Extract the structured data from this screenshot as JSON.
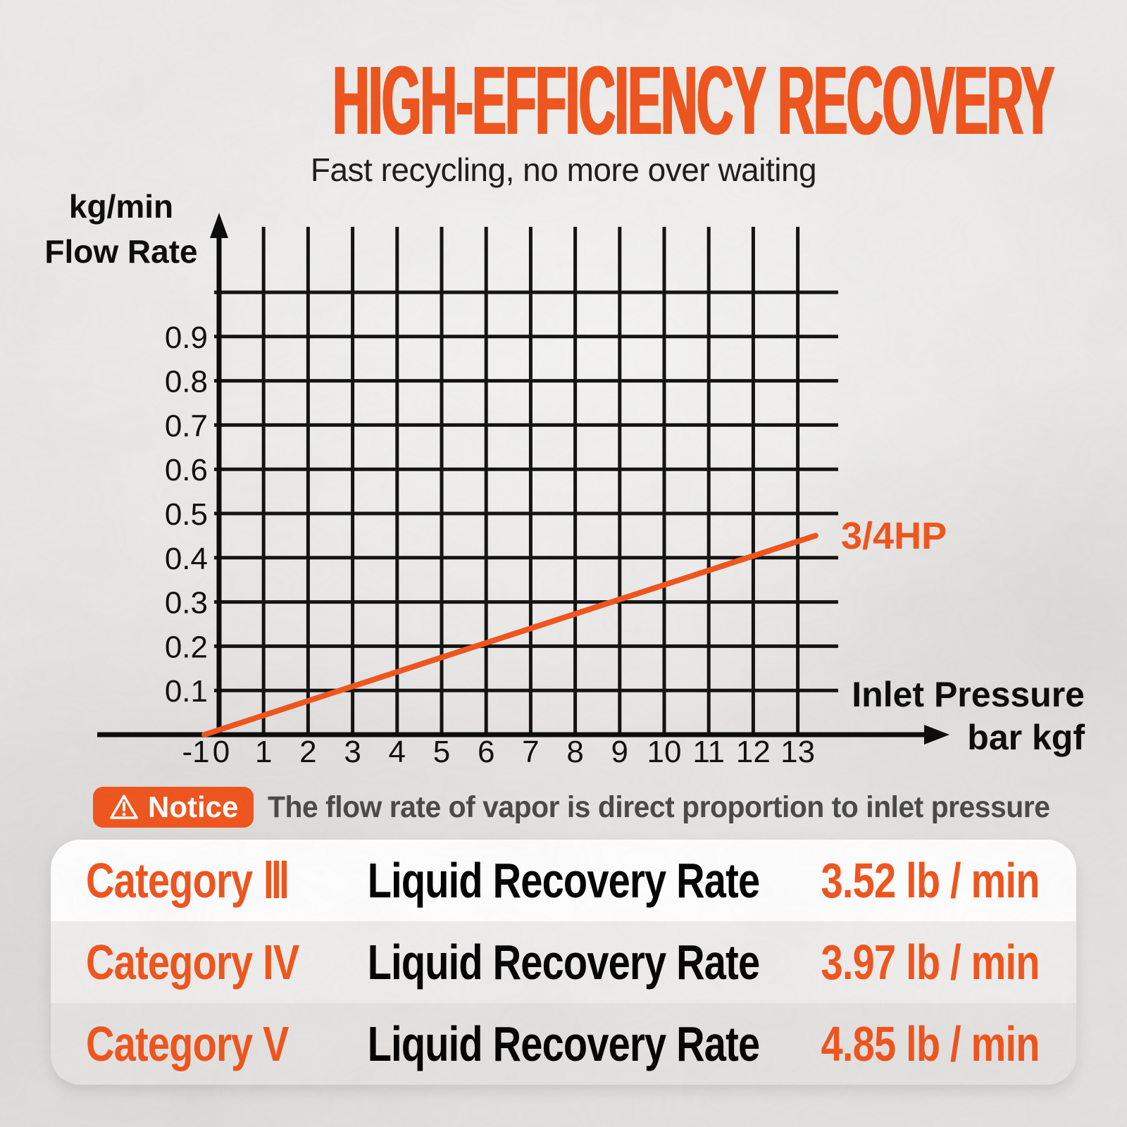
{
  "page": {
    "title": "HIGH-EFFICIENCY RECOVERY",
    "subtitle": "Fast recycling, no more over waiting"
  },
  "colors": {
    "accent": "#F1571F",
    "grid": "#141414",
    "axis": "#0D0D0D",
    "tick_text": "#111111",
    "notice_text": "#4A4A4A",
    "metric_text": "#050505",
    "background": "#E9E8E6"
  },
  "chart": {
    "y_axis_unit": "kg/min",
    "y_axis_name": "Flow Rate",
    "x_axis_name": "Inlet Pressure",
    "x_axis_unit": "bar kgf"
  },
  "chart_data": {
    "type": "line",
    "title": "",
    "xlabel": "Inlet Pressure (bar kgf)",
    "ylabel": "Flow Rate (kg/min)",
    "x_ticks": [
      -1,
      0,
      1,
      2,
      3,
      4,
      5,
      6,
      7,
      8,
      9,
      10,
      11,
      12,
      13
    ],
    "y_ticks": [
      0.1,
      0.2,
      0.3,
      0.4,
      0.5,
      0.6,
      0.7,
      0.8,
      0.9
    ],
    "xlim": [
      -1,
      14
    ],
    "ylim": [
      0,
      1.1
    ],
    "grid": true,
    "legend_position": "inline-right",
    "series": [
      {
        "name": "3/4HP",
        "color": "#F1571F",
        "points": [
          [
            -0.33,
            0.0
          ],
          [
            13.4,
            0.45
          ]
        ]
      }
    ]
  },
  "notice": {
    "badge": "Notice",
    "text": "The flow rate of vapor is direct proportion to inlet pressure"
  },
  "table": {
    "rows": [
      {
        "category": "Category Ⅲ",
        "metric": "Liquid Recovery Rate",
        "value": "3.52 lb / min"
      },
      {
        "category": "Category IV",
        "metric": "Liquid Recovery Rate",
        "value": "3.97 lb / min"
      },
      {
        "category": "Category V",
        "metric": "Liquid Recovery Rate",
        "value": "4.85 lb / min"
      }
    ]
  }
}
